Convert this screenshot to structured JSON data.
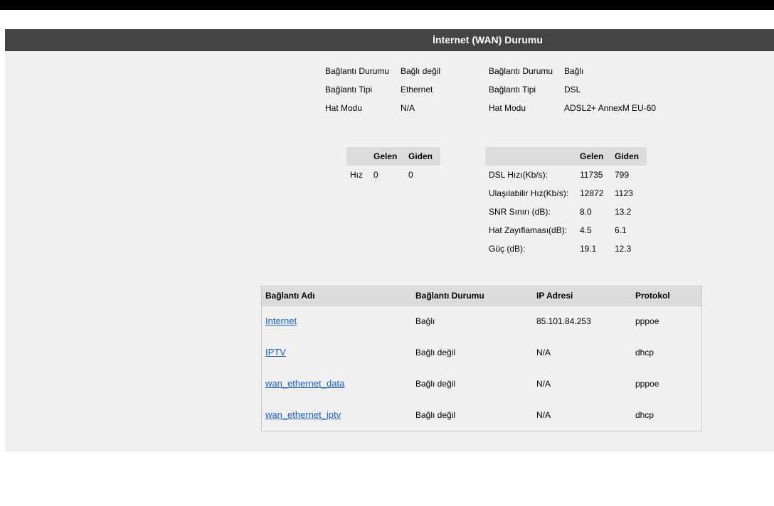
{
  "title": "İnternet (WAN) Durumu",
  "ethernet_info": [
    {
      "label": "Bağlantı Durumu",
      "value": "Bağlı değil"
    },
    {
      "label": "Bağlantı Tipi",
      "value": "Ethernet"
    },
    {
      "label": "Hat Modu",
      "value": "N/A"
    }
  ],
  "dsl_info": [
    {
      "label": "Bağlantı Durumu",
      "value": "Bağlı"
    },
    {
      "label": "Bağlantı Tipi",
      "value": "DSL"
    },
    {
      "label": "Hat Modu",
      "value": "ADSL2+ AnnexM EU-60"
    }
  ],
  "speed_table": {
    "headers": [
      "Gelen",
      "Giden"
    ],
    "rows": [
      {
        "label": "Hız",
        "in": "0",
        "out": "0"
      }
    ]
  },
  "dsl_table": {
    "headers": [
      "Gelen",
      "Giden"
    ],
    "rows": [
      {
        "label": "DSL Hızı(Kb/s):",
        "in": "11735",
        "out": "799"
      },
      {
        "label": "Ulaşılabilir Hız(Kb/s):",
        "in": "12872",
        "out": "1123"
      },
      {
        "label": "SNR Sınırı (dB):",
        "in": "8.0",
        "out": "13.2"
      },
      {
        "label": "Hat Zayıflaması(dB):",
        "in": "4.5",
        "out": "6.1"
      },
      {
        "label": "Güç (dB):",
        "in": "19.1",
        "out": "12.3"
      }
    ]
  },
  "connections": {
    "headers": [
      "Bağlantı Adı",
      "Bağlantı Durumu",
      "IP Adresi",
      "Protokol"
    ],
    "rows": [
      {
        "name": "Internet",
        "status": "Bağlı",
        "ip": "85.101.84.253",
        "protocol": "pppoe"
      },
      {
        "name": "IPTV",
        "status": "Bağlı değil",
        "ip": "N/A",
        "protocol": "dhcp"
      },
      {
        "name": "wan_ethernet_data",
        "status": "Bağlı değil",
        "ip": "N/A",
        "protocol": "pppoe"
      },
      {
        "name": "wan_ethernet_iptv",
        "status": "Bağlı değil",
        "ip": "N/A",
        "protocol": "dhcp"
      }
    ]
  }
}
